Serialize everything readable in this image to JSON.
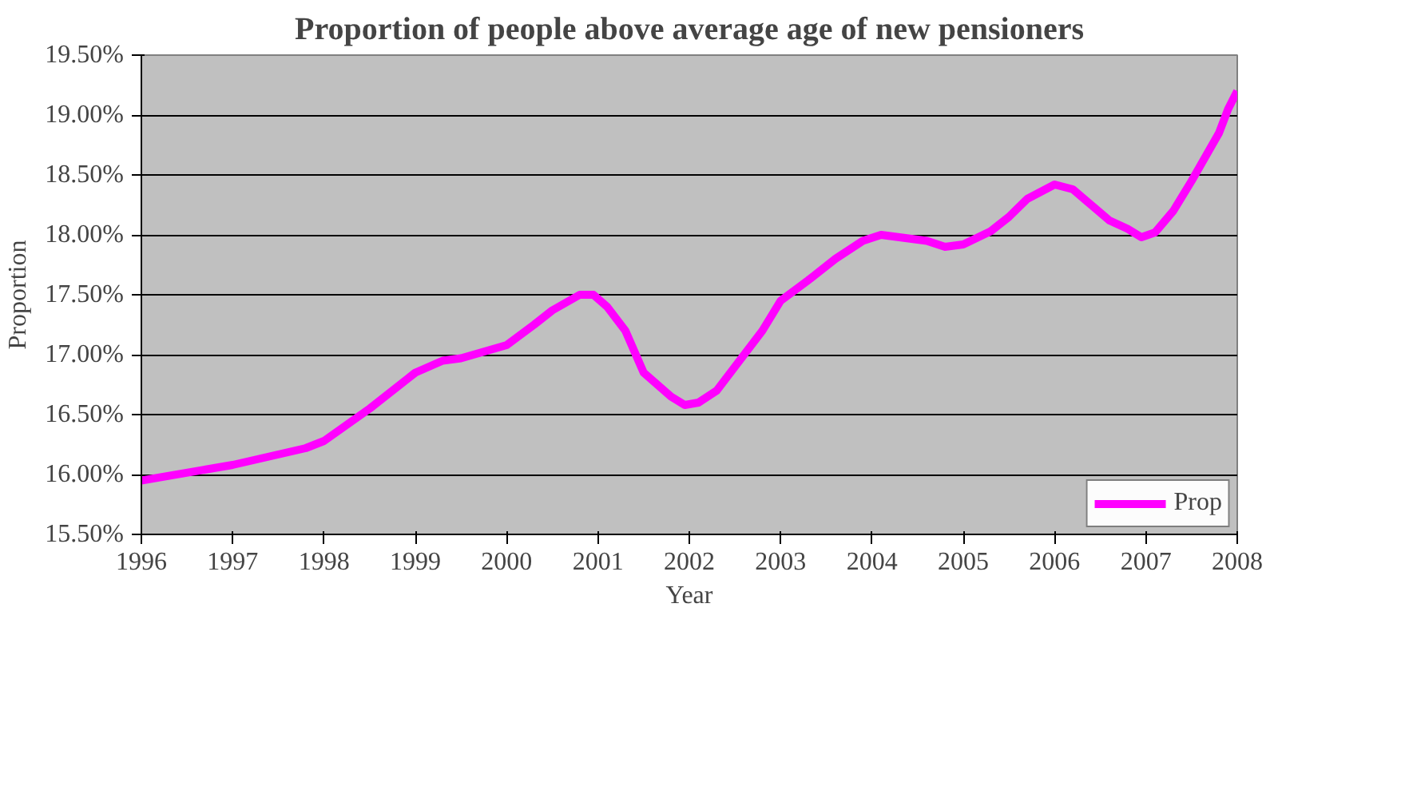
{
  "chart_data": {
    "type": "line",
    "title": "Proportion of people above average age of new pensioners",
    "xlabel": "Year",
    "ylabel": "Proportion",
    "series": [
      {
        "name": "Prop",
        "color": "#ff00ff",
        "x": [
          1996,
          1997,
          1997.8,
          1998,
          1998.5,
          1999,
          1999.3,
          1999.5,
          2000,
          2000.3,
          2000.5,
          2000.8,
          2000.95,
          2001.1,
          2001.3,
          2001.5,
          2001.8,
          2001.95,
          2002.1,
          2002.3,
          2002.5,
          2002.8,
          2003,
          2003.3,
          2003.6,
          2003.9,
          2004.1,
          2004.4,
          2004.6,
          2004.8,
          2005,
          2005.3,
          2005.5,
          2005.7,
          2006,
          2006.2,
          2006.4,
          2006.6,
          2006.8,
          2006.95,
          2007.1,
          2007.3,
          2007.5,
          2007.8,
          2007.9,
          2008
        ],
        "values": [
          15.95,
          16.08,
          16.22,
          16.28,
          16.55,
          16.85,
          16.95,
          16.97,
          17.08,
          17.25,
          17.37,
          17.5,
          17.5,
          17.4,
          17.2,
          16.85,
          16.65,
          16.58,
          16.6,
          16.7,
          16.9,
          17.2,
          17.45,
          17.62,
          17.8,
          17.95,
          18.0,
          17.97,
          17.95,
          17.9,
          17.92,
          18.03,
          18.15,
          18.3,
          18.42,
          18.38,
          18.25,
          18.12,
          18.05,
          17.98,
          18.02,
          18.2,
          18.45,
          18.85,
          19.05,
          19.2
        ]
      }
    ],
    "xlim": [
      1996,
      2008
    ],
    "xticks": [
      1996,
      1997,
      1998,
      1999,
      2000,
      2001,
      2002,
      2003,
      2004,
      2005,
      2006,
      2007,
      2008
    ],
    "ylim": [
      15.5,
      19.5
    ],
    "yticks": [
      {
        "value": 15.5,
        "label": "15.50%"
      },
      {
        "value": 16,
        "label": "16.00%"
      },
      {
        "value": 16.5,
        "label": "16.50%"
      },
      {
        "value": 17,
        "label": "17.00%"
      },
      {
        "value": 17.5,
        "label": "17.50%"
      },
      {
        "value": 18,
        "label": "18.00%"
      },
      {
        "value": 18.5,
        "label": "18.50%"
      },
      {
        "value": 19,
        "label": "19.00%"
      },
      {
        "value": 19.5,
        "label": "19.50%"
      }
    ],
    "grid": "y",
    "legend": "bottom right",
    "marker": "none",
    "line_style": "solid"
  }
}
